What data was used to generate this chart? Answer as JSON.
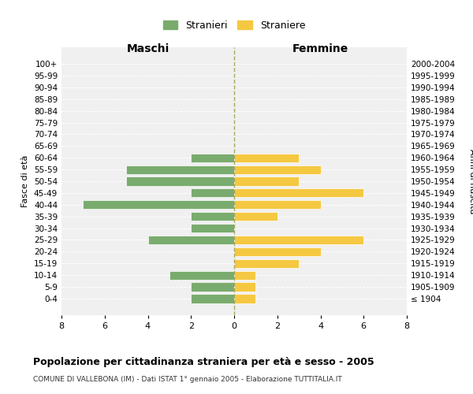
{
  "age_groups": [
    "100+",
    "95-99",
    "90-94",
    "85-89",
    "80-84",
    "75-79",
    "70-74",
    "65-69",
    "60-64",
    "55-59",
    "50-54",
    "45-49",
    "40-44",
    "35-39",
    "30-34",
    "25-29",
    "20-24",
    "15-19",
    "10-14",
    "5-9",
    "0-4"
  ],
  "birth_years": [
    "≤ 1904",
    "1905-1909",
    "1910-1914",
    "1915-1919",
    "1920-1924",
    "1925-1929",
    "1930-1934",
    "1935-1939",
    "1940-1944",
    "1945-1949",
    "1950-1954",
    "1955-1959",
    "1960-1964",
    "1965-1969",
    "1970-1974",
    "1975-1979",
    "1980-1984",
    "1985-1989",
    "1990-1994",
    "1995-1999",
    "2000-2004"
  ],
  "stranieri": [
    0,
    0,
    0,
    0,
    0,
    0,
    0,
    0,
    2,
    5,
    5,
    2,
    7,
    2,
    2,
    4,
    0,
    0,
    3,
    2,
    2
  ],
  "straniere": [
    0,
    0,
    0,
    0,
    0,
    0,
    0,
    0,
    3,
    4,
    3,
    6,
    4,
    2,
    0,
    6,
    4,
    3,
    1,
    1,
    1
  ],
  "stranieri_color": "#7aab6e",
  "straniere_color": "#f5c842",
  "title": "Popolazione per cittadinanza straniera per età e sesso - 2005",
  "subtitle": "COMUNE DI VALLEBONA (IM) - Dati ISTAT 1° gennaio 2005 - Elaborazione TUTTITALIA.IT",
  "xlabel_left": "Maschi",
  "xlabel_right": "Femmine",
  "ylabel_left": "Fasce di età",
  "ylabel_right": "Anni di nascita",
  "xlim": 8,
  "background_color": "#ffffff",
  "plot_bg_color": "#f0f0f0",
  "grid_color": "#ffffff",
  "legend_label_m": "Stranieri",
  "legend_label_f": "Straniere"
}
